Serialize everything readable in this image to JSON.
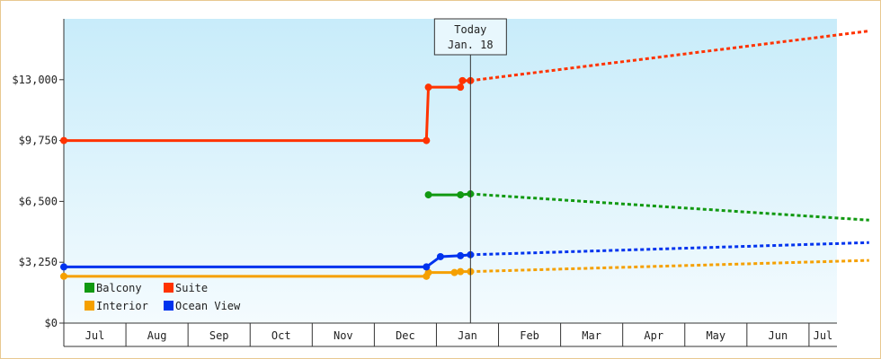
{
  "today_box": {
    "line1": "Today",
    "line2": "Jan. 18"
  },
  "colors": {
    "Suite": "#ff3300",
    "Balcony": "#119911",
    "Ocean View": "#0033ee",
    "Interior": "#f5a000"
  },
  "chart_data": {
    "type": "line",
    "title": "",
    "xlabel": "",
    "ylabel": "",
    "ylim": [
      0,
      16250
    ],
    "y_ticks": [
      0,
      3250,
      6500,
      9750,
      13000
    ],
    "y_tick_labels": [
      "$0",
      "$3,250",
      "$6,500",
      "$9,750",
      "$13,000"
    ],
    "x_ticks": [
      "Jul",
      "Aug",
      "Sep",
      "Oct",
      "Nov",
      "Dec",
      "Jan",
      "Feb",
      "Mar",
      "Apr",
      "May",
      "Jun",
      "Jul"
    ],
    "today": "Jan. 18",
    "grid": false,
    "legend_position": "bottom-left",
    "legend": [
      "Balcony",
      "Suite",
      "Interior",
      "Ocean View"
    ],
    "series": [
      {
        "name": "Suite",
        "color": "#ff3300",
        "historical": [
          {
            "x": "Jul 1",
            "y": 9750
          },
          {
            "x": "Dec 27",
            "y": 9750
          },
          {
            "x": "Dec 28",
            "y": 12600
          },
          {
            "x": "Jan 13",
            "y": 12600
          },
          {
            "x": "Jan 14",
            "y": 12950
          },
          {
            "x": "Jan 18",
            "y": 12950
          }
        ],
        "forecast": [
          {
            "x": "Jan 18",
            "y": 12950
          },
          {
            "x": "Jul 31",
            "y": 15600
          }
        ]
      },
      {
        "name": "Balcony",
        "color": "#119911",
        "historical": [
          {
            "x": "Dec 28",
            "y": 6850
          },
          {
            "x": "Jan 13",
            "y": 6850
          },
          {
            "x": "Jan 18",
            "y": 6900
          }
        ],
        "forecast": [
          {
            "x": "Jan 18",
            "y": 6900
          },
          {
            "x": "Jul 31",
            "y": 5500
          }
        ]
      },
      {
        "name": "Ocean View",
        "color": "#0033ee",
        "historical": [
          {
            "x": "Jul 1",
            "y": 3000
          },
          {
            "x": "Dec 27",
            "y": 3000
          },
          {
            "x": "Jan 3",
            "y": 3550
          },
          {
            "x": "Jan 13",
            "y": 3600
          },
          {
            "x": "Jan 18",
            "y": 3650
          }
        ],
        "forecast": [
          {
            "x": "Jan 18",
            "y": 3650
          },
          {
            "x": "Jul 31",
            "y": 4300
          }
        ]
      },
      {
        "name": "Interior",
        "color": "#f5a000",
        "historical": [
          {
            "x": "Jul 1",
            "y": 2500
          },
          {
            "x": "Dec 27",
            "y": 2500
          },
          {
            "x": "Dec 28",
            "y": 2700
          },
          {
            "x": "Jan 10",
            "y": 2700
          },
          {
            "x": "Jan 13",
            "y": 2750
          },
          {
            "x": "Jan 18",
            "y": 2750
          }
        ],
        "forecast": [
          {
            "x": "Jan 18",
            "y": 2750
          },
          {
            "x": "Jul 31",
            "y": 3350
          }
        ]
      }
    ]
  }
}
